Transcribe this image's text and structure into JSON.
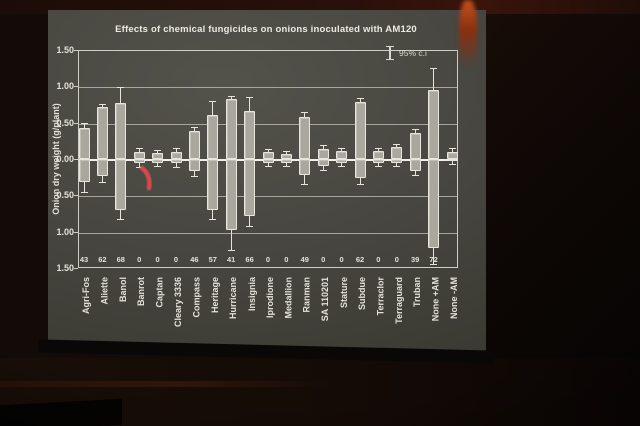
{
  "slide": {
    "laser_pointer_color": "#e64547",
    "colors": {
      "screen_background": "#46453f",
      "ink": "#e6e4db",
      "bar_fill": "#aaa89e",
      "wall_glow": "#c2521b"
    }
  },
  "chart_data": {
    "type": "bar",
    "title": "Effects of chemical fungicides on onions inoculated with AM120",
    "ylabel": "Onion dry weight (g/plant)",
    "ylim": [
      -1.5,
      1.5
    ],
    "axis_note": "mirrored axis: values below zero labeled with positive numbers",
    "y_tick_values": [
      1.5,
      1.0,
      0.5,
      0.0,
      -0.5,
      -1.0,
      -1.5
    ],
    "y_tick_labels": [
      "1.50",
      "1.00",
      "0.50",
      "0.00",
      "0.50",
      "1.00",
      "1.50"
    ],
    "legend_label": "95% c.i",
    "legend_position": "top-right inside plot",
    "grid": "horizontal lines at 0.50 intervals, heavy line at zero",
    "categories": [
      "Agri-Fos",
      "Aliette",
      "Banol",
      "Banrot",
      "Captan",
      "Cleary 3336",
      "Compass",
      "Heritage",
      "Hurricane",
      "Insignia",
      "Iprodione",
      "Medallion",
      "Ranman",
      "SA 110201",
      "Stature",
      "Subdue",
      "Terraclor",
      "Terraguard",
      "Truban",
      "None +AM",
      "None -AM"
    ],
    "colonization_percent": [
      "43",
      "62",
      "68",
      "0",
      "0",
      "0",
      "46",
      "57",
      "41",
      "66",
      "0",
      "0",
      "49",
      "0",
      "0",
      "62",
      "0",
      "0",
      "39",
      "72",
      ""
    ],
    "series": [
      {
        "name": "upper bar (above zero)",
        "values": [
          0.42,
          0.72,
          0.77,
          0.1,
          0.08,
          0.1,
          0.39,
          0.6,
          0.83,
          0.66,
          0.1,
          0.07,
          0.58,
          0.14,
          0.11,
          0.78,
          0.11,
          0.16,
          0.36,
          0.95,
          0.1
        ],
        "ci95": [
          0.08,
          0.04,
          0.22,
          0.05,
          0.04,
          0.05,
          0.05,
          0.2,
          0.04,
          0.2,
          0.04,
          0.04,
          0.06,
          0.05,
          0.04,
          0.06,
          0.04,
          0.05,
          0.05,
          0.3,
          0.05
        ]
      },
      {
        "name": "lower bar (below zero)",
        "values": [
          -0.32,
          -0.24,
          -0.7,
          -0.06,
          -0.06,
          -0.06,
          -0.17,
          -0.7,
          -0.98,
          -0.78,
          -0.05,
          -0.05,
          -0.22,
          -0.1,
          -0.05,
          -0.26,
          -0.05,
          -0.05,
          -0.17,
          -1.22,
          -0.03
        ],
        "ci95": [
          0.13,
          0.07,
          0.12,
          0.05,
          0.04,
          0.05,
          0.06,
          0.13,
          0.27,
          0.14,
          0.04,
          0.04,
          0.12,
          0.05,
          0.04,
          0.08,
          0.04,
          0.04,
          0.05,
          0.22,
          0.04
        ]
      }
    ]
  }
}
